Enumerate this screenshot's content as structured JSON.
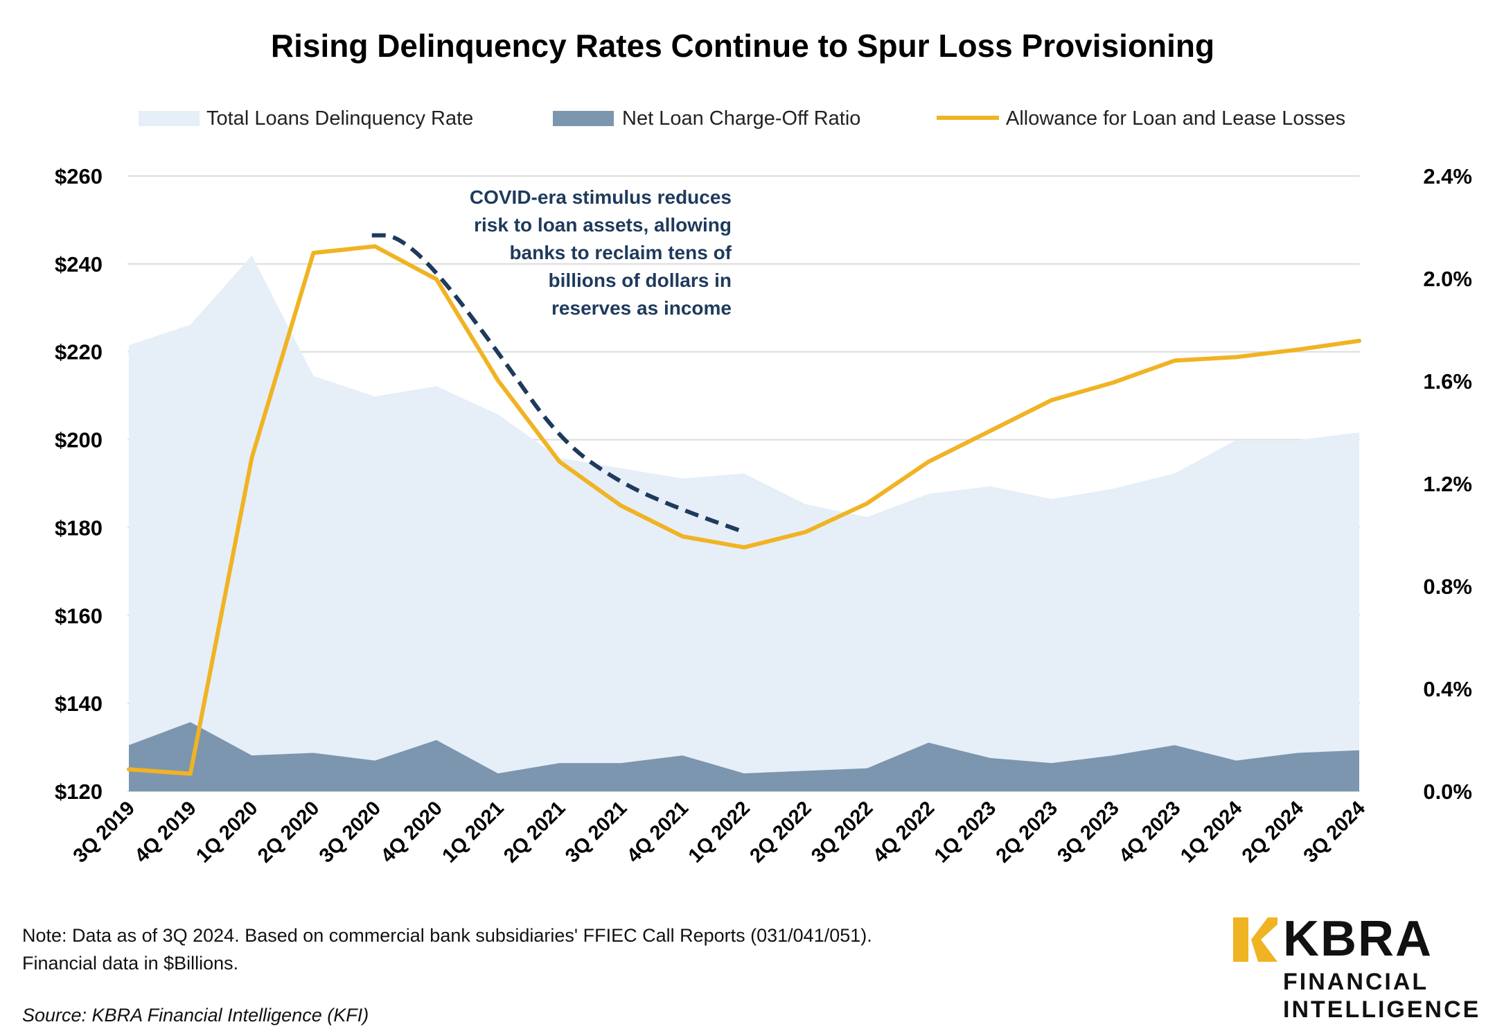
{
  "chart_data": {
    "type": "area+line",
    "title": "Rising Delinquency Rates Continue to Spur Loss Provisioning",
    "categories": [
      "3Q 2019",
      "4Q 2019",
      "1Q 2020",
      "2Q 2020",
      "3Q 2020",
      "4Q 2020",
      "1Q 2021",
      "2Q 2021",
      "3Q 2021",
      "4Q 2021",
      "1Q 2022",
      "2Q 2022",
      "3Q 2022",
      "4Q 2022",
      "1Q 2023",
      "2Q 2023",
      "3Q 2023",
      "4Q 2023",
      "1Q 2024",
      "2Q 2024",
      "3Q 2024"
    ],
    "left_axis": {
      "ylim": [
        120,
        260
      ],
      "ticks": [
        "$120",
        "$140",
        "$160",
        "$180",
        "$200",
        "$220",
        "$240",
        "$260"
      ],
      "tick_values": [
        120,
        140,
        160,
        180,
        200,
        220,
        240,
        260
      ]
    },
    "right_axis": {
      "ylim": [
        0,
        2.4
      ],
      "ticks": [
        "0.0%",
        "0.4%",
        "0.8%",
        "1.2%",
        "1.6%",
        "2.0%",
        "2.4%"
      ],
      "tick_values": [
        0,
        0.4,
        0.8,
        1.2,
        1.6,
        2.0,
        2.4
      ]
    },
    "grid": true,
    "legend_position": "top",
    "series": [
      {
        "name": "Total Loans Delinquency Rate",
        "kind": "area",
        "axis": "right",
        "color": "#e6eef8",
        "values": [
          1.74,
          1.82,
          2.09,
          1.62,
          1.54,
          1.58,
          1.47,
          1.3,
          1.26,
          1.22,
          1.24,
          1.12,
          1.07,
          1.16,
          1.19,
          1.14,
          1.18,
          1.24,
          1.37,
          1.37,
          1.4
        ]
      },
      {
        "name": "Net Loan Charge-Off Ratio",
        "kind": "area",
        "axis": "right",
        "color": "#7b96ae",
        "values": [
          0.18,
          0.27,
          0.14,
          0.15,
          0.12,
          0.2,
          0.07,
          0.11,
          0.11,
          0.14,
          0.07,
          0.08,
          0.09,
          0.19,
          0.13,
          0.11,
          0.14,
          0.18,
          0.12,
          0.15,
          0.16
        ]
      },
      {
        "name": "Allowance for Loan and Lease Losses",
        "kind": "line",
        "axis": "left",
        "color": "#f0b323",
        "values": [
          125.0,
          124.0,
          196.0,
          242.5,
          244.0,
          236.5,
          213.5,
          195.0,
          185.0,
          178.0,
          175.5,
          179.0,
          185.5,
          195.0,
          202.0,
          209.0,
          213.0,
          218.0,
          218.8,
          220.5,
          222.5
        ]
      }
    ],
    "annotation": {
      "lines": [
        "COVID-era stimulus reduces",
        "risk to loan assets, allowing",
        "banks to reclaim tens of",
        "billions of dollars in",
        "reserves as income"
      ],
      "arrow_values": [
        246.5,
        246.5,
        238.5,
        220.0,
        200.0,
        190.0,
        184.0,
        179.0
      ]
    }
  },
  "footer": {
    "note_line1": "Note: Data as of 3Q 2024. Based on commercial bank subsidiaries' FFIEC Call Reports (031/041/051).",
    "note_line2": "Financial data in $Billions.",
    "source": "Source: KBRA Financial Intelligence (KFI)"
  },
  "logo": {
    "word": "KBRA",
    "line1": "FINANCIAL",
    "line2": "INTELLIGENCE"
  },
  "colors": {
    "accent": "#f0b323",
    "annotation": "#1e3a5c",
    "grid": "#dcdcdc"
  }
}
